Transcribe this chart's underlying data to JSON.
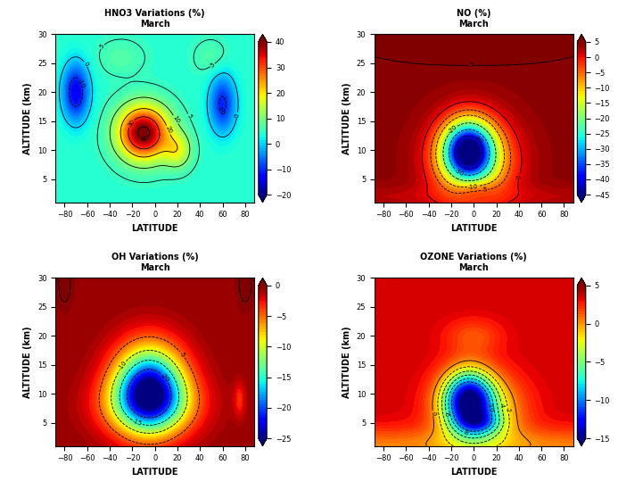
{
  "titles": [
    "HNO3 Variations (%)\nMarch",
    "NO (%)\nMarch",
    "OH Variations (%)\nMarch",
    "OZONE Variations (%)\nMarch"
  ],
  "xlabels": [
    "LATITUDE",
    "LATITUDE",
    "LATITUDE",
    "LATITUDE"
  ],
  "ylabels": [
    "ALTITUDE (km)",
    "ALTITUDE (km)",
    "ALTITUDE (km)",
    "ALTITUDE (km)"
  ],
  "panel_configs": [
    {
      "vmin": -20,
      "vmax": 40,
      "cbar_ticks": [
        40,
        30,
        20,
        10,
        0,
        -10,
        -20
      ],
      "contour_levels": [
        -20,
        -10,
        0,
        5,
        10,
        20,
        30,
        40
      ]
    },
    {
      "vmin": -45,
      "vmax": 5,
      "cbar_ticks": [
        5,
        0,
        -5,
        -10,
        -15,
        -20,
        -25,
        -30,
        -35,
        -40,
        -45
      ],
      "contour_levels": [
        -40,
        -30,
        -20,
        -10,
        -5,
        0,
        5
      ]
    },
    {
      "vmin": -25,
      "vmax": 0,
      "cbar_ticks": [
        0,
        -5,
        -10,
        -15,
        -20,
        -25
      ],
      "contour_levels": [
        -20,
        -15,
        -10,
        -5,
        0
      ]
    },
    {
      "vmin": -15,
      "vmax": 5,
      "cbar_ticks": [
        5,
        0,
        -5,
        -10,
        -15
      ],
      "contour_levels": [
        -10,
        -8,
        -6,
        -4,
        -2,
        0
      ]
    }
  ]
}
